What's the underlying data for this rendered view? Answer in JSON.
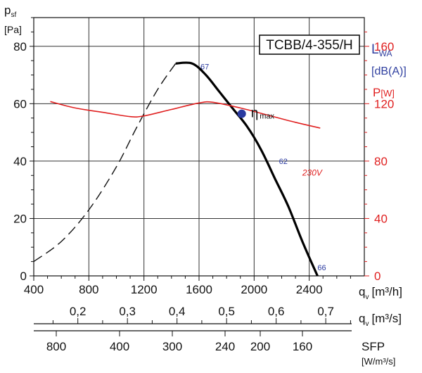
{
  "chart_data": {
    "type": "line",
    "model_label": "TCBB/4-355/H",
    "axes": {
      "x": {
        "label": "q",
        "sub": "v",
        "unit": "[m³/h]",
        "range": [
          400,
          2800
        ],
        "ticks": [
          "400",
          "800",
          "1200",
          "1600",
          "2000",
          "2400"
        ]
      },
      "y_left": {
        "label": "p",
        "sub": "sf",
        "unit": "[Pa]",
        "range": [
          0,
          90
        ],
        "ticks": [
          "0",
          "20",
          "40",
          "60",
          "80"
        ]
      },
      "y_right": {
        "label": "P",
        "unit": "[W]",
        "color": "#e02020",
        "range": [
          0,
          180
        ],
        "ticks": [
          "0",
          "40",
          "80",
          "120",
          "160"
        ]
      },
      "x2": {
        "label": "q",
        "sub": "v",
        "unit": "[m³/s]",
        "ticks": [
          {
            "value": 0.2,
            "text": "0,2"
          },
          {
            "value": 0.3,
            "text": "0,3"
          },
          {
            "value": 0.4,
            "text": "0,4"
          },
          {
            "value": 0.5,
            "text": "0,5"
          },
          {
            "value": 0.6,
            "text": "0,6"
          },
          {
            "value": 0.7,
            "text": "0,7"
          }
        ]
      },
      "sfp": {
        "label": "SFP",
        "unit": "[W/m³/s]",
        "ticks": [
          {
            "value": 800,
            "text": "800"
          },
          {
            "value": 400,
            "text": "400"
          },
          {
            "value": 300,
            "text": "300"
          },
          {
            "value": 240,
            "text": "240"
          },
          {
            "value": 200,
            "text": "200"
          },
          {
            "value": 160,
            "text": "160"
          }
        ]
      }
    },
    "lwa_label": {
      "text": "L",
      "sub": "WA",
      "color": "#3040a0"
    },
    "dba_label": "[dB(A)]",
    "eta": {
      "symbol": "η",
      "sub": "max",
      "x": 1910,
      "y": 56.5,
      "color": "#2a3aa0"
    },
    "series": [
      {
        "role": "pressure-stall",
        "style": "dashed",
        "color": "#111111",
        "points": [
          [
            400,
            5
          ],
          [
            600,
            12
          ],
          [
            800,
            23
          ],
          [
            1000,
            38
          ],
          [
            1150,
            52
          ],
          [
            1300,
            65
          ],
          [
            1430,
            74
          ]
        ]
      },
      {
        "role": "pressure",
        "style": "solid",
        "color": "#000000",
        "points": [
          [
            1430,
            74
          ],
          [
            1550,
            74
          ],
          [
            1650,
            70
          ],
          [
            1750,
            64
          ],
          [
            1850,
            58
          ],
          [
            1950,
            52
          ],
          [
            2050,
            44
          ],
          [
            2150,
            34
          ],
          [
            2250,
            24
          ],
          [
            2350,
            12
          ],
          [
            2460,
            0
          ]
        ]
      },
      {
        "role": "power",
        "style": "solid",
        "color": "#e02020",
        "name": "230V",
        "points": [
          [
            520,
            121.5
          ],
          [
            700,
            117
          ],
          [
            900,
            114
          ],
          [
            1100,
            111
          ],
          [
            1200,
            111.5
          ],
          [
            1400,
            116
          ],
          [
            1600,
            120.5
          ],
          [
            1700,
            121
          ],
          [
            1900,
            117
          ],
          [
            2100,
            112
          ],
          [
            2300,
            107
          ],
          [
            2480,
            103
          ]
        ]
      }
    ],
    "annotations": [
      {
        "text": "67",
        "x": 1610,
        "y": 72,
        "color": "#2a3aa0"
      },
      {
        "text": "62",
        "x": 2180,
        "y": 39,
        "color": "#2a3aa0"
      },
      {
        "text": "66",
        "x": 2460,
        "y": 2,
        "color": "#2a3aa0"
      },
      {
        "text": "230V",
        "x": 2350,
        "y": 35,
        "color": "#e02020"
      }
    ]
  }
}
